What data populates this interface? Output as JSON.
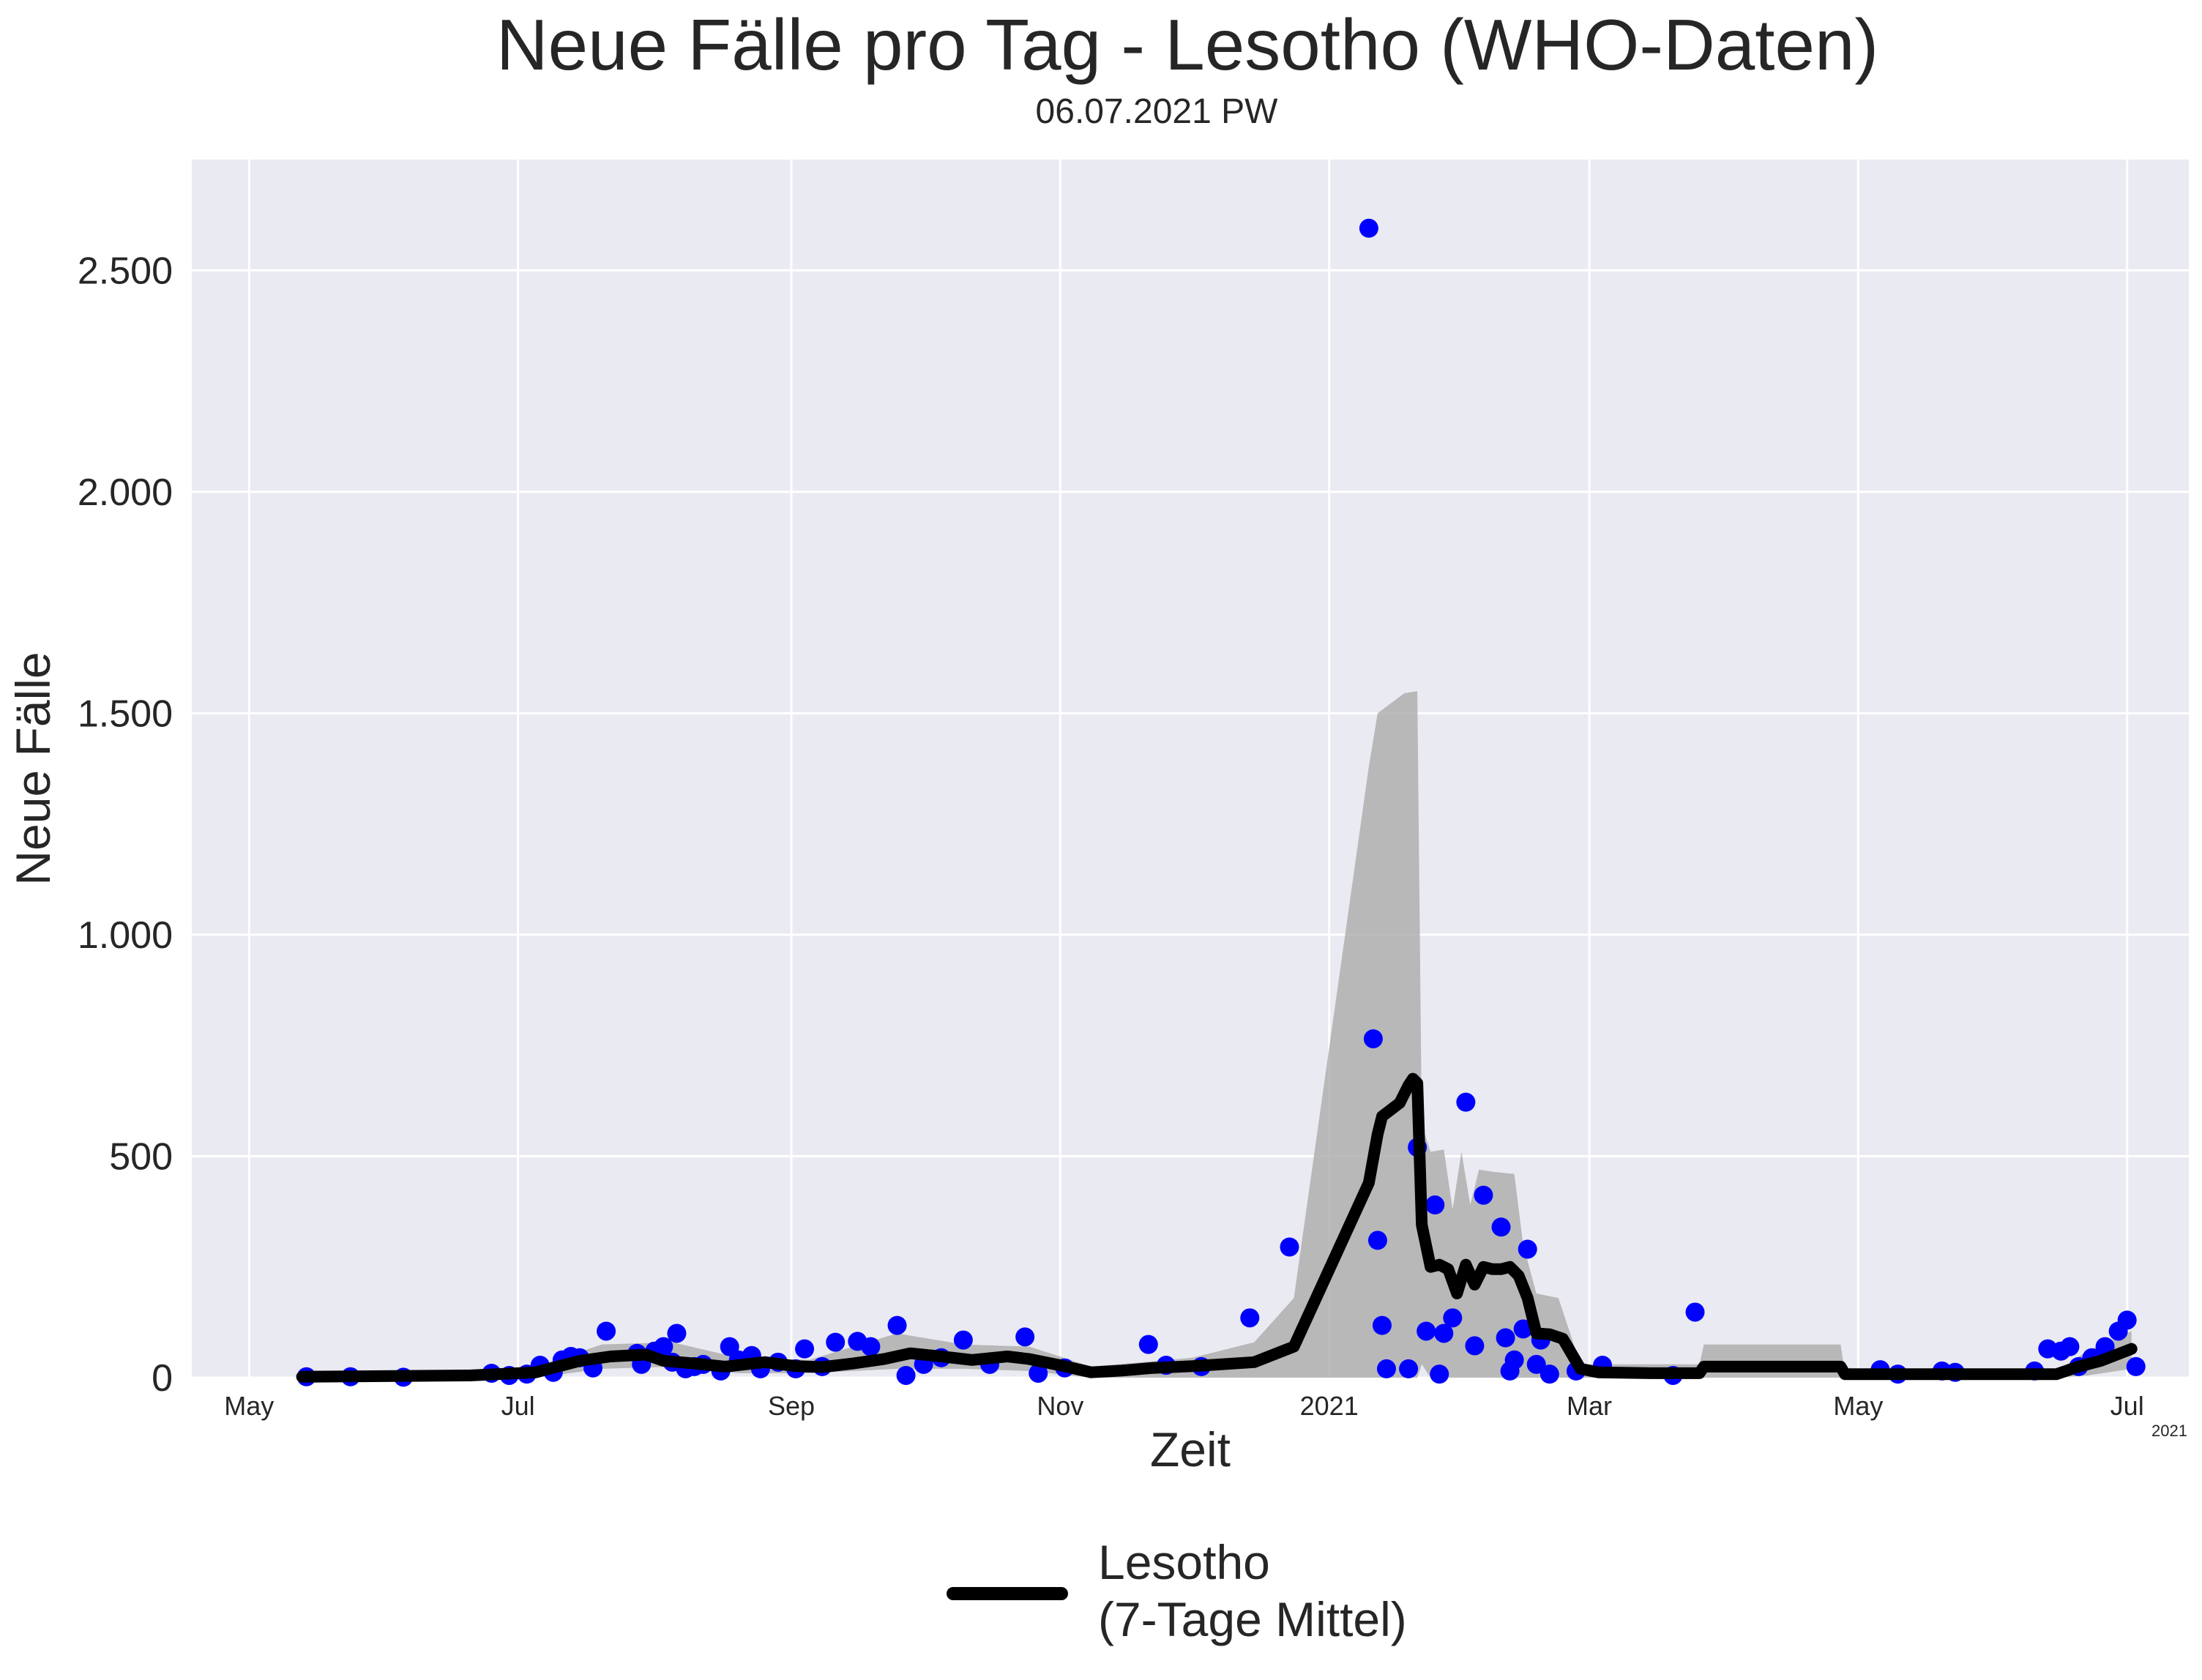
{
  "chart_data": {
    "type": "line",
    "title": "Neue Fälle pro Tag - Lesotho (WHO-Daten)",
    "subtitle": "06.07.2021 PW",
    "xlabel": "Zeit",
    "ylabel": "Neue Fälle",
    "x_offset_label": "2021",
    "xlim": [
      "2020-04-18",
      "2021-07-15"
    ],
    "ylim": [
      0,
      2750
    ],
    "grid": true,
    "legend_position": "bottom-center",
    "colors": {
      "background": "#eaeaf2",
      "grid": "#ffffff",
      "points": "#0000ff",
      "line": "#000000",
      "band": "#a9a9a9"
    },
    "y_ticks": [
      {
        "value": 0,
        "label": "0"
      },
      {
        "value": 500,
        "label": "500"
      },
      {
        "value": 1000,
        "label": "1.000"
      },
      {
        "value": 1500,
        "label": "1.500"
      },
      {
        "value": 2000,
        "label": "2.000"
      },
      {
        "value": 2500,
        "label": "2.500"
      }
    ],
    "x_ticks": [
      {
        "date": "2020-05-01",
        "label": "May"
      },
      {
        "date": "2020-07-01",
        "label": "Jul"
      },
      {
        "date": "2020-09-01",
        "label": "Sep"
      },
      {
        "date": "2020-11-01",
        "label": "Nov"
      },
      {
        "date": "2021-01-01",
        "label": "2021"
      },
      {
        "date": "2021-03-01",
        "label": "Mar"
      },
      {
        "date": "2021-05-01",
        "label": "May"
      },
      {
        "date": "2021-07-01",
        "label": "Jul"
      }
    ],
    "series": [
      {
        "name": "Lesotho\n(7-Tage Mittel)",
        "kind": "line",
        "points": [
          [
            "2020-05-13",
            2
          ],
          [
            "2020-06-20",
            5
          ],
          [
            "2020-07-05",
            12
          ],
          [
            "2020-07-15",
            38
          ],
          [
            "2020-07-22",
            48
          ],
          [
            "2020-07-30",
            52
          ],
          [
            "2020-08-03",
            38
          ],
          [
            "2020-08-10",
            32
          ],
          [
            "2020-08-17",
            25
          ],
          [
            "2020-08-26",
            35
          ],
          [
            "2020-09-02",
            26
          ],
          [
            "2020-09-08",
            24
          ],
          [
            "2020-09-15",
            32
          ],
          [
            "2020-09-22",
            42
          ],
          [
            "2020-09-28",
            55
          ],
          [
            "2020-10-05",
            48
          ],
          [
            "2020-10-12",
            40
          ],
          [
            "2020-10-20",
            48
          ],
          [
            "2020-10-25",
            42
          ],
          [
            "2020-11-01",
            28
          ],
          [
            "2020-11-08",
            12
          ],
          [
            "2020-11-15",
            16
          ],
          [
            "2020-11-22",
            22
          ],
          [
            "2020-12-01",
            26
          ],
          [
            "2020-12-15",
            35
          ],
          [
            "2020-12-24",
            70
          ],
          [
            "2021-01-10",
            440
          ],
          [
            "2021-01-12",
            550
          ],
          [
            "2021-01-13",
            590
          ],
          [
            "2021-01-15",
            605
          ],
          [
            "2021-01-17",
            620
          ],
          [
            "2021-01-19",
            660
          ],
          [
            "2021-01-20",
            675
          ],
          [
            "2021-01-21",
            665
          ],
          [
            "2021-01-22",
            345
          ],
          [
            "2021-01-24",
            250
          ],
          [
            "2021-01-26",
            255
          ],
          [
            "2021-01-28",
            245
          ],
          [
            "2021-01-30",
            190
          ],
          [
            "2021-02-01",
            255
          ],
          [
            "2021-02-03",
            210
          ],
          [
            "2021-02-05",
            250
          ],
          [
            "2021-02-07",
            245
          ],
          [
            "2021-02-09",
            245
          ],
          [
            "2021-02-11",
            250
          ],
          [
            "2021-02-13",
            230
          ],
          [
            "2021-02-15",
            180
          ],
          [
            "2021-02-17",
            100
          ],
          [
            "2021-02-20",
            98
          ],
          [
            "2021-02-23",
            88
          ],
          [
            "2021-02-27",
            20
          ],
          [
            "2021-03-03",
            12
          ],
          [
            "2021-03-15",
            10
          ],
          [
            "2021-03-26",
            10
          ],
          [
            "2021-03-27",
            25
          ],
          [
            "2021-04-27",
            25
          ],
          [
            "2021-04-28",
            8
          ],
          [
            "2021-06-15",
            8
          ],
          [
            "2021-06-20",
            25
          ],
          [
            "2021-06-25",
            38
          ],
          [
            "2021-07-02",
            65
          ]
        ]
      },
      {
        "name": "",
        "kind": "scatter",
        "points": [
          [
            "2020-05-14",
            2
          ],
          [
            "2020-05-24",
            2
          ],
          [
            "2020-06-05",
            1
          ],
          [
            "2020-06-25",
            10
          ],
          [
            "2020-06-29",
            5
          ],
          [
            "2020-07-03",
            8
          ],
          [
            "2020-07-06",
            28
          ],
          [
            "2020-07-09",
            12
          ],
          [
            "2020-07-11",
            40
          ],
          [
            "2020-07-13",
            48
          ],
          [
            "2020-07-15",
            45
          ],
          [
            "2020-07-18",
            22
          ],
          [
            "2020-07-21",
            105
          ],
          [
            "2020-07-28",
            55
          ],
          [
            "2020-07-29",
            30
          ],
          [
            "2020-08-01",
            60
          ],
          [
            "2020-08-03",
            70
          ],
          [
            "2020-08-05",
            35
          ],
          [
            "2020-08-06",
            100
          ],
          [
            "2020-08-08",
            20
          ],
          [
            "2020-08-10",
            25
          ],
          [
            "2020-08-12",
            30
          ],
          [
            "2020-08-16",
            15
          ],
          [
            "2020-08-18",
            70
          ],
          [
            "2020-08-20",
            40
          ],
          [
            "2020-08-23",
            50
          ],
          [
            "2020-08-25",
            20
          ],
          [
            "2020-08-29",
            35
          ],
          [
            "2020-09-02",
            20
          ],
          [
            "2020-09-04",
            65
          ],
          [
            "2020-09-08",
            25
          ],
          [
            "2020-09-11",
            80
          ],
          [
            "2020-09-16",
            82
          ],
          [
            "2020-09-19",
            70
          ],
          [
            "2020-09-25",
            118
          ],
          [
            "2020-09-27",
            5
          ],
          [
            "2020-10-01",
            30
          ],
          [
            "2020-10-05",
            45
          ],
          [
            "2020-10-10",
            85
          ],
          [
            "2020-10-16",
            30
          ],
          [
            "2020-10-24",
            92
          ],
          [
            "2020-10-27",
            10
          ],
          [
            "2020-11-02",
            22
          ],
          [
            "2020-11-21",
            75
          ],
          [
            "2020-11-25",
            28
          ],
          [
            "2020-12-03",
            25
          ],
          [
            "2020-12-14",
            135
          ],
          [
            "2020-12-23",
            295
          ],
          [
            "2021-01-10",
            2595
          ],
          [
            "2021-01-11",
            765
          ],
          [
            "2021-01-12",
            310
          ],
          [
            "2021-01-13",
            118
          ],
          [
            "2021-01-14",
            20
          ],
          [
            "2021-01-19",
            20
          ],
          [
            "2021-01-21",
            520
          ],
          [
            "2021-01-23",
            105
          ],
          [
            "2021-01-25",
            390
          ],
          [
            "2021-01-26",
            8
          ],
          [
            "2021-01-27",
            100
          ],
          [
            "2021-01-29",
            135
          ],
          [
            "2021-02-01",
            622
          ],
          [
            "2021-02-03",
            72
          ],
          [
            "2021-02-05",
            412
          ],
          [
            "2021-02-09",
            340
          ],
          [
            "2021-02-10",
            90
          ],
          [
            "2021-02-11",
            15
          ],
          [
            "2021-02-12",
            40
          ],
          [
            "2021-02-14",
            110
          ],
          [
            "2021-02-15",
            290
          ],
          [
            "2021-02-17",
            30
          ],
          [
            "2021-02-18",
            85
          ],
          [
            "2021-02-20",
            8
          ],
          [
            "2021-02-26",
            15
          ],
          [
            "2021-03-04",
            28
          ],
          [
            "2021-03-20",
            5
          ],
          [
            "2021-03-25",
            148
          ],
          [
            "2021-05-06",
            18
          ],
          [
            "2021-05-10",
            8
          ],
          [
            "2021-05-20",
            15
          ],
          [
            "2021-05-23",
            12
          ],
          [
            "2021-06-10",
            15
          ],
          [
            "2021-06-13",
            65
          ],
          [
            "2021-06-16",
            60
          ],
          [
            "2021-06-18",
            70
          ],
          [
            "2021-06-20",
            25
          ],
          [
            "2021-06-23",
            45
          ],
          [
            "2021-06-26",
            70
          ],
          [
            "2021-06-29",
            105
          ],
          [
            "2021-07-01",
            130
          ],
          [
            "2021-07-03",
            25
          ]
        ]
      },
      {
        "name": "",
        "kind": "band",
        "points": [
          [
            "2020-05-13",
            0,
            5
          ],
          [
            "2020-06-20",
            0,
            10
          ],
          [
            "2020-07-05",
            0,
            25
          ],
          [
            "2020-07-20",
            20,
            75
          ],
          [
            "2020-08-05",
            25,
            80
          ],
          [
            "2020-08-20",
            10,
            45
          ],
          [
            "2020-09-05",
            10,
            40
          ],
          [
            "2020-09-25",
            20,
            100
          ],
          [
            "2020-10-10",
            20,
            75
          ],
          [
            "2020-10-25",
            15,
            70
          ],
          [
            "2020-11-08",
            0,
            25
          ],
          [
            "2020-12-01",
            0,
            45
          ],
          [
            "2020-12-15",
            0,
            80
          ],
          [
            "2020-12-24",
            0,
            180
          ],
          [
            "2021-01-10",
            0,
            1380
          ],
          [
            "2021-01-12",
            0,
            1500
          ],
          [
            "2021-01-14",
            0,
            1515
          ],
          [
            "2021-01-18",
            0,
            1545
          ],
          [
            "2021-01-21",
            0,
            1550
          ],
          [
            "2021-01-22",
            30,
            570
          ],
          [
            "2021-01-24",
            0,
            510
          ],
          [
            "2021-01-27",
            0,
            515
          ],
          [
            "2021-01-29",
            0,
            380
          ],
          [
            "2021-01-31",
            0,
            510
          ],
          [
            "2021-02-02",
            0,
            390
          ],
          [
            "2021-02-04",
            0,
            470
          ],
          [
            "2021-02-07",
            0,
            465
          ],
          [
            "2021-02-12",
            0,
            460
          ],
          [
            "2021-02-14",
            0,
            300
          ],
          [
            "2021-02-17",
            0,
            190
          ],
          [
            "2021-02-22",
            0,
            180
          ],
          [
            "2021-02-27",
            0,
            30
          ],
          [
            "2021-03-26",
            0,
            30
          ],
          [
            "2021-03-27",
            0,
            75
          ],
          [
            "2021-04-27",
            0,
            75
          ],
          [
            "2021-04-28",
            0,
            10
          ],
          [
            "2021-06-15",
            0,
            15
          ],
          [
            "2021-06-22",
            5,
            60
          ],
          [
            "2021-07-02",
            20,
            105
          ]
        ]
      }
    ]
  }
}
